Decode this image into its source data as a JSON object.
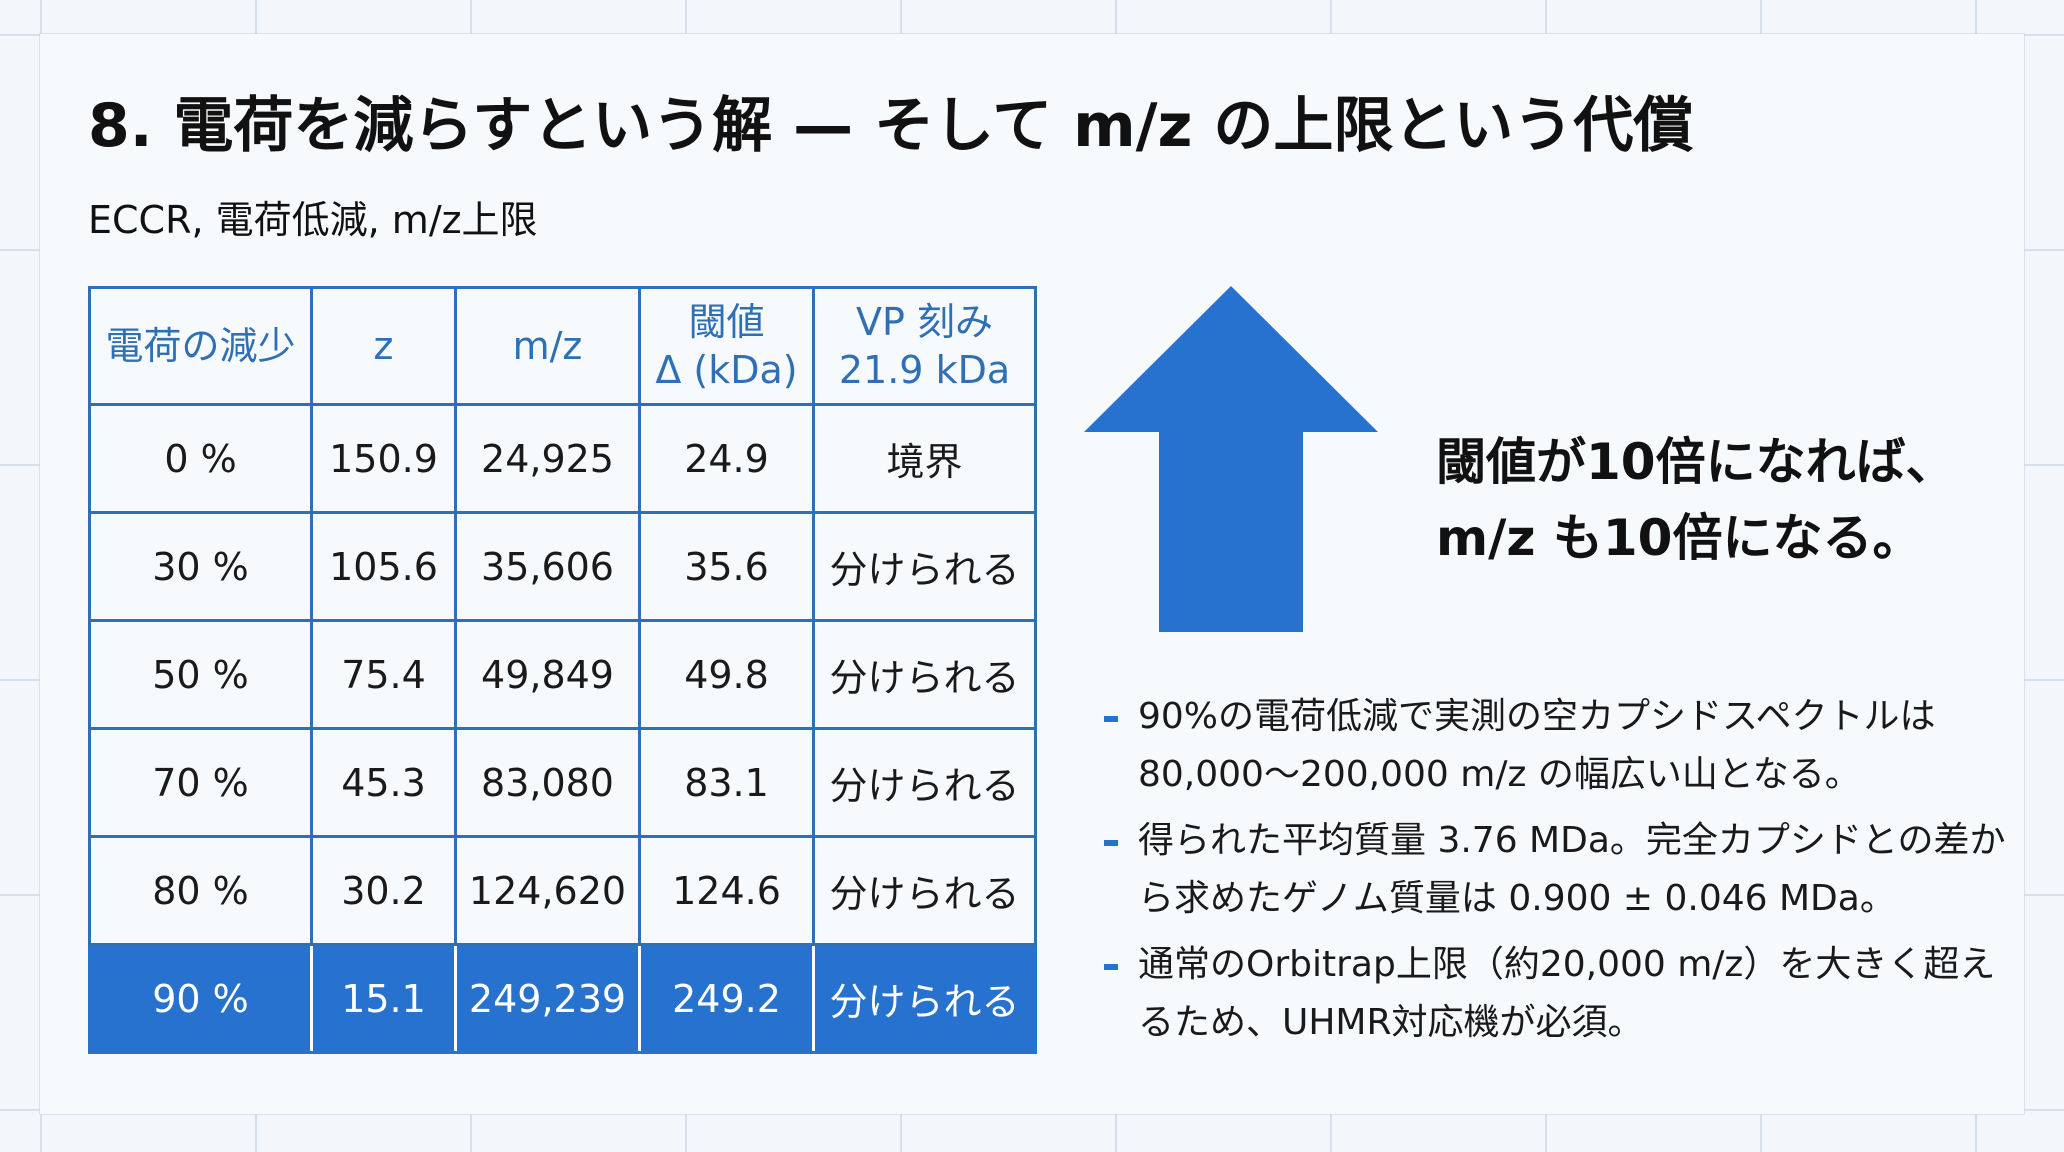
{
  "title": "8. 電荷を減らすという解 — そして m/z の上限という代償",
  "subtitle": "ECCR, 電荷低減, m/z上限",
  "table": {
    "headers": [
      "電荷の減少",
      "z",
      "m/z",
      "閾値\nΔ (kDa)",
      "VP 刻み\n21.9 kDa"
    ],
    "header_lines": [
      [
        "電荷の減少"
      ],
      [
        "z"
      ],
      [
        "m/z"
      ],
      [
        "閾値",
        "Δ (kDa)"
      ],
      [
        "VP 刻み",
        "21.9 kDa"
      ]
    ],
    "rows": [
      [
        "0 %",
        "150.9",
        "24,925",
        "24.9",
        "境界"
      ],
      [
        "30 %",
        "105.6",
        "35,606",
        "35.6",
        "分けられる"
      ],
      [
        "50 %",
        "75.4",
        "49,849",
        "49.8",
        "分けられる"
      ],
      [
        "70 %",
        "45.3",
        "83,080",
        "83.1",
        "分けられる"
      ],
      [
        "80 %",
        "30.2",
        "124,620",
        "124.6",
        "分けられる"
      ],
      [
        "90 %",
        "15.1",
        "249,239",
        "249.2",
        "分けられる"
      ]
    ],
    "highlight_row": 5
  },
  "arrow": {
    "icon": "up-arrow-icon",
    "color": "#2872cf"
  },
  "callout": {
    "line1": "閾値が10倍になれば、",
    "line2": "m/z も10倍になる。"
  },
  "notes": [
    "90%の電荷低減で実測の空カプシドスペクトルは80,000〜200,000 m/z の幅広い山となる。",
    "得られた平均質量 3.76 MDa。完全カプシドとの差から求めたゲノム質量は 0.900 ± 0.046 MDa。",
    "通常のOrbitrap上限（約20,000 m/z）を大きく超えるため、UHMR対応機が必須。"
  ],
  "colors": {
    "accent": "#2872cf",
    "table_border": "#2f6fb5",
    "background": "#f7fafd"
  }
}
